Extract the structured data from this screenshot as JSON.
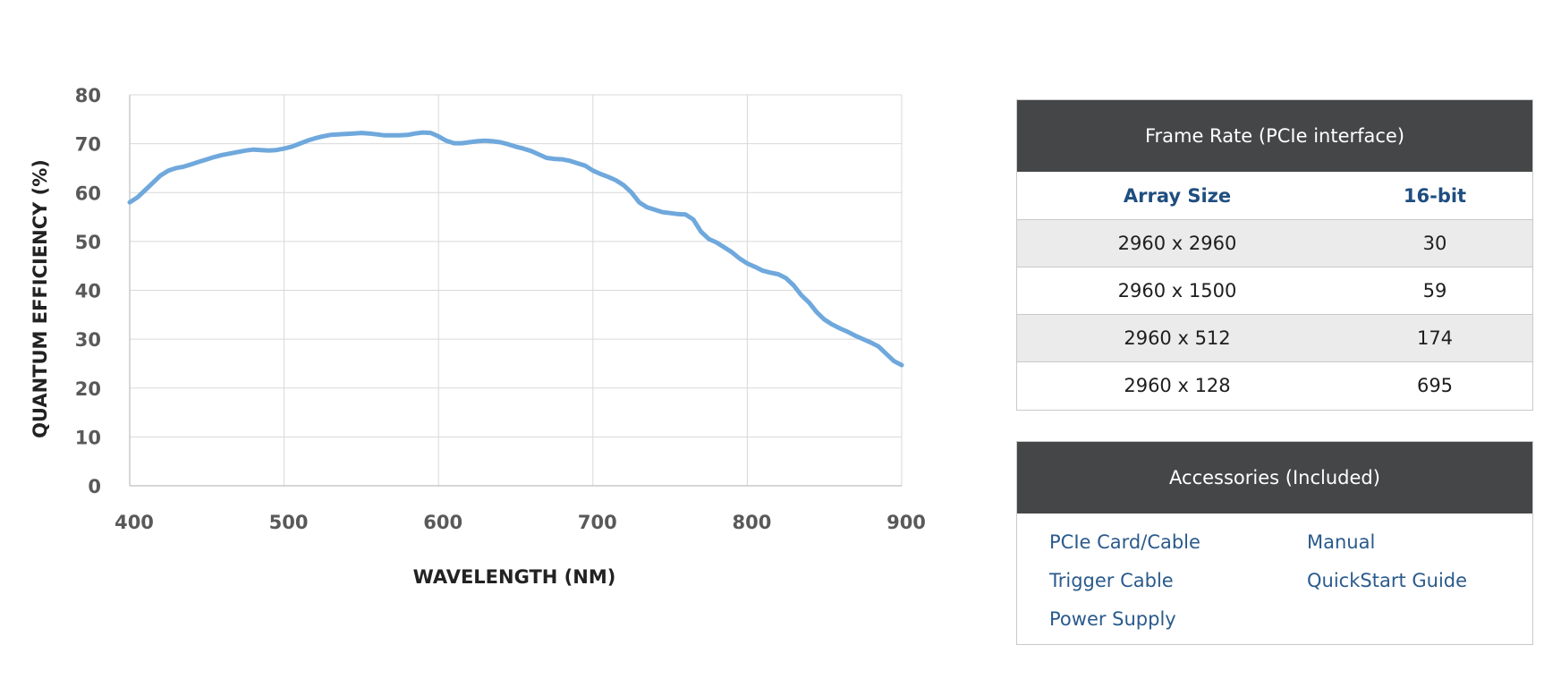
{
  "chart_data": {
    "type": "line",
    "title": "",
    "xlabel": "WAVELENGTH (NM)",
    "ylabel": "QUANTUM EFFICIENCY (%)",
    "xlim": [
      400,
      900
    ],
    "ylim": [
      0,
      80
    ],
    "xticks": [
      400,
      500,
      600,
      700,
      800,
      900
    ],
    "yticks": [
      0,
      10,
      20,
      30,
      40,
      50,
      60,
      70,
      80
    ],
    "grid": true,
    "line_color": "#6fa8dc",
    "series": [
      {
        "x": [
          400,
          405,
          410,
          415,
          420,
          425,
          430,
          435,
          440,
          445,
          450,
          455,
          460,
          465,
          470,
          475,
          480,
          485,
          490,
          495,
          500,
          505,
          510,
          515,
          520,
          525,
          530,
          535,
          540,
          545,
          550,
          555,
          560,
          565,
          570,
          575,
          580,
          585,
          590,
          595,
          600,
          605,
          610,
          615,
          620,
          625,
          630,
          635,
          640,
          645,
          650,
          655,
          660,
          665,
          670,
          675,
          680,
          685,
          690,
          695,
          700,
          705,
          710,
          715,
          720,
          725,
          730,
          735,
          740,
          745,
          750,
          755,
          760,
          765,
          770,
          775,
          780,
          785,
          790,
          795,
          800,
          805,
          810,
          815,
          820,
          825,
          830,
          835,
          840,
          845,
          850,
          855,
          860,
          865,
          870,
          875,
          880,
          885,
          890,
          895,
          900
        ],
        "y": [
          58,
          59,
          60.5,
          62,
          63.5,
          64.5,
          65,
          65.3,
          65.8,
          66.3,
          66.8,
          67.3,
          67.7,
          68,
          68.3,
          68.6,
          68.8,
          68.7,
          68.6,
          68.7,
          69,
          69.4,
          70,
          70.6,
          71.1,
          71.5,
          71.8,
          71.9,
          72,
          72.1,
          72.2,
          72.1,
          71.9,
          71.7,
          71.7,
          71.7,
          71.8,
          72.1,
          72.3,
          72.2,
          71.5,
          70.6,
          70.1,
          70.1,
          70.3,
          70.5,
          70.6,
          70.5,
          70.3,
          69.9,
          69.4,
          69,
          68.5,
          67.8,
          67.1,
          66.9,
          66.8,
          66.5,
          66,
          65.5,
          64.5,
          63.8,
          63.2,
          62.5,
          61.5,
          60,
          58,
          57,
          56.5,
          56,
          55.8,
          55.6,
          55.5,
          54.5,
          52,
          50.5,
          49.8,
          48.8,
          47.8,
          46.5,
          45.5,
          44.8,
          44,
          43.6,
          43.3,
          42.5,
          41,
          39,
          37.5,
          35.5,
          34,
          33,
          32.2,
          31.5,
          30.7,
          30,
          29.3,
          28.5,
          27,
          25.5,
          24.7
        ]
      }
    ]
  },
  "frame_rate": {
    "title": "Frame Rate (PCIe interface)",
    "headers": [
      "Array Size",
      "16-bit"
    ],
    "rows": [
      [
        "2960 x 2960",
        "30"
      ],
      [
        "2960 x 1500",
        "59"
      ],
      [
        "2960 x 512",
        "174"
      ],
      [
        "2960 x 128",
        "695"
      ]
    ]
  },
  "accessories": {
    "title": "Accessories (Included)",
    "items": [
      "PCIe Card/Cable",
      "Manual",
      "Trigger Cable",
      "QuickStart Guide",
      "Power Supply"
    ]
  }
}
